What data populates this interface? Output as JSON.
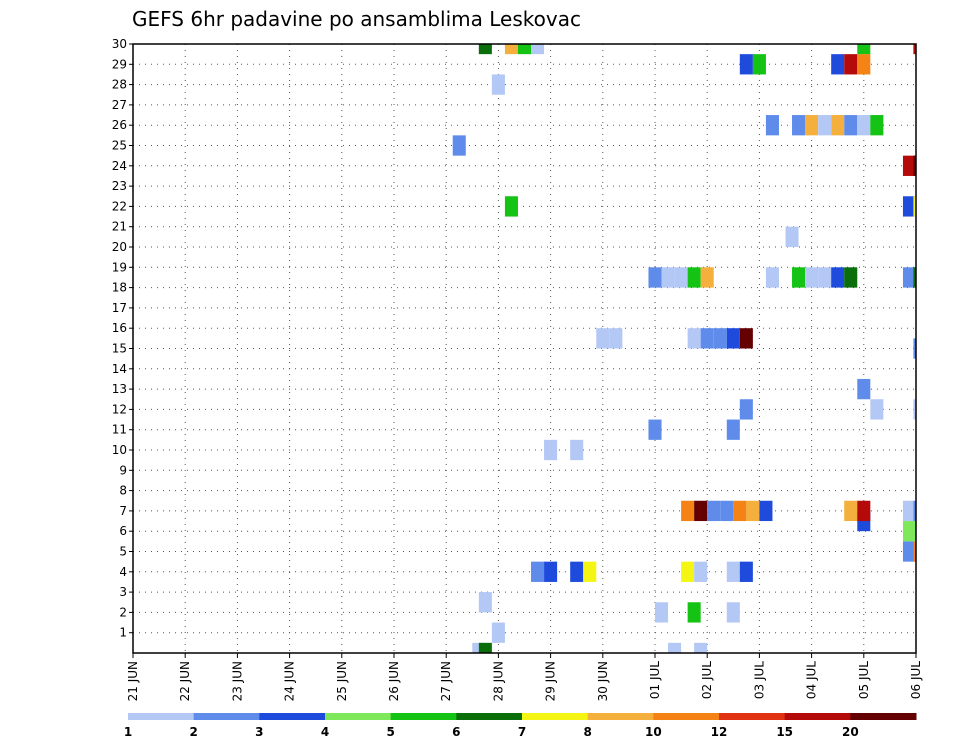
{
  "chart_data": {
    "type": "heatmap",
    "title": "GEFS 6hr padavine po ansamblima Leskovac",
    "xlabel": "",
    "ylabel": "",
    "x_ticks": [
      "21 JUN",
      "22 JUN",
      "23 JUN",
      "24 JUN",
      "25 JUN",
      "26 JUN",
      "27 JUN",
      "28 JUN",
      "29 JUN",
      "30 JUN",
      "01 JUL",
      "02 JUL",
      "03 JUL",
      "04 JUL",
      "05 JUL",
      "06 JUL"
    ],
    "y_ticks": [
      1,
      2,
      3,
      4,
      5,
      6,
      7,
      8,
      9,
      10,
      11,
      12,
      13,
      14,
      15,
      16,
      17,
      18,
      19,
      20,
      21,
      22,
      23,
      24,
      25,
      26,
      27,
      28,
      29,
      30
    ],
    "xlim": [
      0,
      60
    ],
    "ylim": [
      0,
      30
    ],
    "grid": true,
    "colorbar": {
      "labels": [
        "1",
        "2",
        "3",
        "4",
        "5",
        "6",
        "7",
        "8",
        "10",
        "12",
        "15",
        "20"
      ],
      "colors": [
        "#b4c8f5",
        "#5f8ceb",
        "#1e4bdc",
        "#7fe85a",
        "#14c314",
        "#0a6e0a",
        "#f5f514",
        "#f5af3c",
        "#f58214",
        "#e13214",
        "#b40a0a",
        "#640000"
      ]
    },
    "cells": [
      {
        "t": 26.5,
        "m": 0,
        "v": 1
      },
      {
        "t": 27,
        "m": 0,
        "v": 6
      },
      {
        "t": 41.5,
        "m": 0,
        "v": 1
      },
      {
        "t": 43.5,
        "m": 0,
        "v": 1
      },
      {
        "t": 27,
        "m": 2.5,
        "v": 1
      },
      {
        "t": 28,
        "m": 1,
        "v": 1
      },
      {
        "t": 40.5,
        "m": 2,
        "v": 1
      },
      {
        "t": 43,
        "m": 2,
        "v": 5
      },
      {
        "t": 46,
        "m": 2,
        "v": 1
      },
      {
        "t": 31,
        "m": 4,
        "v": 2
      },
      {
        "t": 32,
        "m": 4,
        "v": 3
      },
      {
        "t": 34,
        "m": 4,
        "v": 3
      },
      {
        "t": 35,
        "m": 4,
        "v": 7
      },
      {
        "t": 42.5,
        "m": 4,
        "v": 7
      },
      {
        "t": 43.5,
        "m": 4,
        "v": 1
      },
      {
        "t": 46,
        "m": 4,
        "v": 1
      },
      {
        "t": 47,
        "m": 4,
        "v": 3
      },
      {
        "t": 59.5,
        "m": 5,
        "v": 2
      },
      {
        "t": 60.3,
        "m": 5,
        "v": 10
      },
      {
        "t": 59.5,
        "m": 6,
        "v": 4
      },
      {
        "t": 56,
        "m": 6.5,
        "v": 3
      },
      {
        "t": 42.5,
        "m": 7,
        "v": 10
      },
      {
        "t": 43.5,
        "m": 7,
        "v": 20
      },
      {
        "t": 44.5,
        "m": 7,
        "v": 2
      },
      {
        "t": 45.5,
        "m": 7,
        "v": 2
      },
      {
        "t": 46.5,
        "m": 7,
        "v": 10
      },
      {
        "t": 47.5,
        "m": 7,
        "v": 8
      },
      {
        "t": 48.5,
        "m": 7,
        "v": 3
      },
      {
        "t": 55,
        "m": 7,
        "v": 8
      },
      {
        "t": 56,
        "m": 7,
        "v": 15
      },
      {
        "t": 59.5,
        "m": 7,
        "v": 1
      },
      {
        "t": 60.3,
        "m": 7,
        "v": 2
      },
      {
        "t": 32,
        "m": 10,
        "v": 1
      },
      {
        "t": 34,
        "m": 10,
        "v": 1
      },
      {
        "t": 40,
        "m": 11,
        "v": 2
      },
      {
        "t": 46,
        "m": 11,
        "v": 2
      },
      {
        "t": 47,
        "m": 12,
        "v": 2
      },
      {
        "t": 57,
        "m": 12,
        "v": 1
      },
      {
        "t": 60.3,
        "m": 12,
        "v": 1
      },
      {
        "t": 56,
        "m": 13,
        "v": 2
      },
      {
        "t": 36,
        "m": 15.5,
        "v": 1
      },
      {
        "t": 37,
        "m": 15.5,
        "v": 1
      },
      {
        "t": 43,
        "m": 15.5,
        "v": 1
      },
      {
        "t": 44,
        "m": 15.5,
        "v": 2
      },
      {
        "t": 45,
        "m": 15.5,
        "v": 2
      },
      {
        "t": 46,
        "m": 15.5,
        "v": 3
      },
      {
        "t": 47,
        "m": 15.5,
        "v": 20
      },
      {
        "t": 60.3,
        "m": 15,
        "v": 2
      },
      {
        "t": 40,
        "m": 18.5,
        "v": 2
      },
      {
        "t": 41,
        "m": 18.5,
        "v": 1
      },
      {
        "t": 42,
        "m": 18.5,
        "v": 1
      },
      {
        "t": 43,
        "m": 18.5,
        "v": 5
      },
      {
        "t": 44,
        "m": 18.5,
        "v": 8
      },
      {
        "t": 49,
        "m": 18.5,
        "v": 1
      },
      {
        "t": 51,
        "m": 18.5,
        "v": 5
      },
      {
        "t": 52,
        "m": 18.5,
        "v": 1
      },
      {
        "t": 53,
        "m": 18.5,
        "v": 1
      },
      {
        "t": 54,
        "m": 18.5,
        "v": 3
      },
      {
        "t": 55,
        "m": 18.5,
        "v": 6
      },
      {
        "t": 59.5,
        "m": 18.5,
        "v": 2
      },
      {
        "t": 60.3,
        "m": 18.5,
        "v": 6
      },
      {
        "t": 50.5,
        "m": 20.5,
        "v": 1
      },
      {
        "t": 29,
        "m": 22,
        "v": 5
      },
      {
        "t": 59.5,
        "m": 22,
        "v": 3
      },
      {
        "t": 60.3,
        "m": 22,
        "v": 7
      },
      {
        "t": 59.5,
        "m": 24,
        "v": 15
      },
      {
        "t": 60.3,
        "m": 24,
        "v": 20
      },
      {
        "t": 25,
        "m": 25,
        "v": 2
      },
      {
        "t": 49,
        "m": 26,
        "v": 2
      },
      {
        "t": 51,
        "m": 26,
        "v": 2
      },
      {
        "t": 52,
        "m": 26,
        "v": 8
      },
      {
        "t": 53,
        "m": 26,
        "v": 1
      },
      {
        "t": 54,
        "m": 26,
        "v": 8
      },
      {
        "t": 55,
        "m": 26,
        "v": 2
      },
      {
        "t": 56,
        "m": 26,
        "v": 1
      },
      {
        "t": 57,
        "m": 26,
        "v": 5
      },
      {
        "t": 28,
        "m": 28,
        "v": 1
      },
      {
        "t": 47,
        "m": 29,
        "v": 3
      },
      {
        "t": 48,
        "m": 29,
        "v": 5
      },
      {
        "t": 54,
        "m": 29,
        "v": 3
      },
      {
        "t": 55,
        "m": 29,
        "v": 15
      },
      {
        "t": 56,
        "m": 29,
        "v": 10
      },
      {
        "t": 27,
        "m": 30,
        "v": 6
      },
      {
        "t": 29,
        "m": 30,
        "v": 8
      },
      {
        "t": 30,
        "m": 30,
        "v": 5
      },
      {
        "t": 31,
        "m": 30,
        "v": 1
      },
      {
        "t": 56,
        "m": 30,
        "v": 5
      },
      {
        "t": 60.3,
        "m": 30,
        "v": 15
      }
    ]
  }
}
